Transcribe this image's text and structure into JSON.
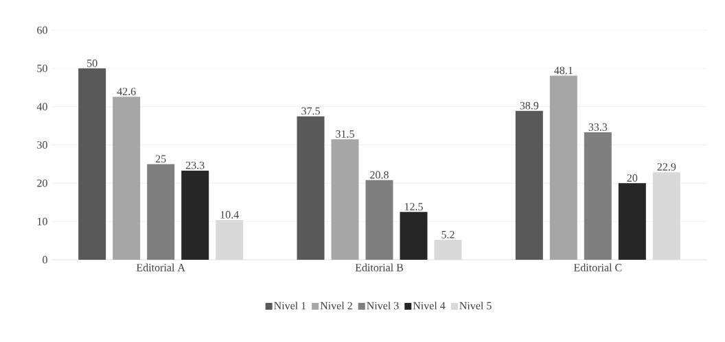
{
  "chart_data": {
    "type": "bar",
    "categories": [
      "Editorial A",
      "Editorial B",
      "Editorial C"
    ],
    "series": [
      {
        "name": "Nivel 1",
        "color": "#595959",
        "values": [
          50,
          37.5,
          38.9
        ]
      },
      {
        "name": "Nivel 2",
        "color": "#a6a6a6",
        "values": [
          42.6,
          31.5,
          48.1
        ]
      },
      {
        "name": "Nivel 3",
        "color": "#7f7f7f",
        "values": [
          25,
          20.8,
          33.3
        ]
      },
      {
        "name": "Nivel 4",
        "color": "#262626",
        "values": [
          23.3,
          12.5,
          20
        ]
      },
      {
        "name": "Nivel 5",
        "color": "#d9d9d9",
        "values": [
          10.4,
          5.2,
          22.9
        ]
      }
    ],
    "ylim": [
      0,
      60
    ],
    "yticks": [
      0,
      10,
      20,
      30,
      40,
      50,
      60
    ],
    "grid": "y",
    "legend": "bottom",
    "data_labels": true
  }
}
